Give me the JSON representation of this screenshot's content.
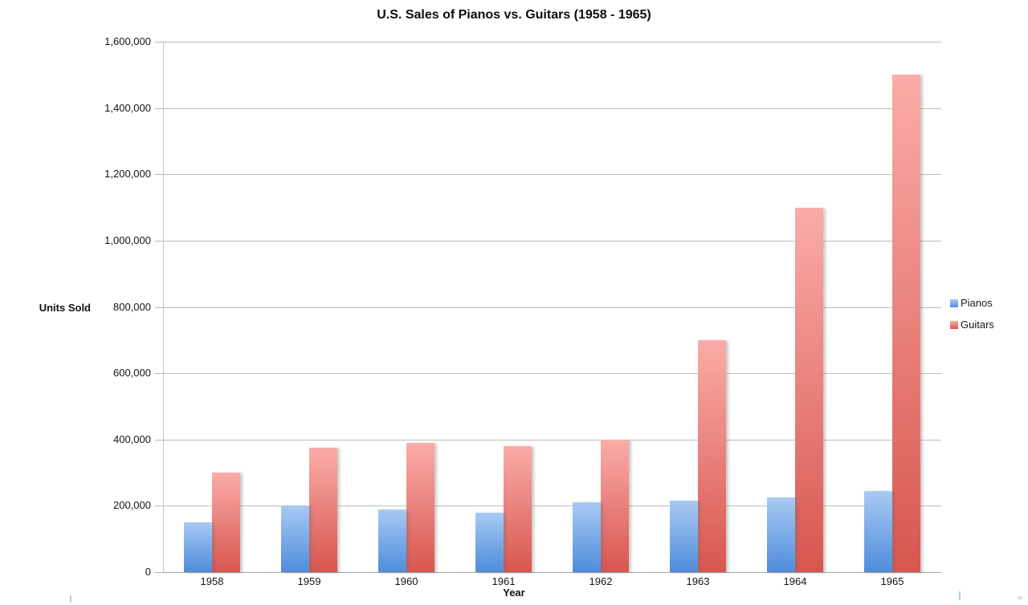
{
  "chart_data": {
    "type": "bar",
    "title": "U.S. Sales of Pianos vs. Guitars (1958 - 1965)",
    "xlabel": "Year",
    "ylabel": "Units Sold",
    "categories": [
      "1958",
      "1959",
      "1960",
      "1961",
      "1962",
      "1963",
      "1964",
      "1965"
    ],
    "series": [
      {
        "name": "Pianos",
        "color": "#6FA4E6",
        "gradient_top": "#A8CAF3",
        "gradient_bottom": "#4F8CDA",
        "values": [
          150000,
          200000,
          190000,
          180000,
          210000,
          215000,
          225000,
          245000
        ]
      },
      {
        "name": "Guitars",
        "color": "#E8817C",
        "gradient_top": "#FAACA8",
        "gradient_bottom": "#D8564F",
        "values": [
          300000,
          375000,
          390000,
          380000,
          400000,
          700000,
          1100000,
          1500000
        ]
      }
    ],
    "ylim": [
      0,
      1600000
    ],
    "y_tick_interval": 200000,
    "y_tick_labels": [
      "0",
      "200,000",
      "400,000",
      "600,000",
      "800,000",
      "1,000,000",
      "1,200,000",
      "1,400,000",
      "1,600,000"
    ],
    "grid": true,
    "legend_position": "right",
    "grid_color": "#bfbfbf",
    "axis_color": "#a3a3a3"
  }
}
